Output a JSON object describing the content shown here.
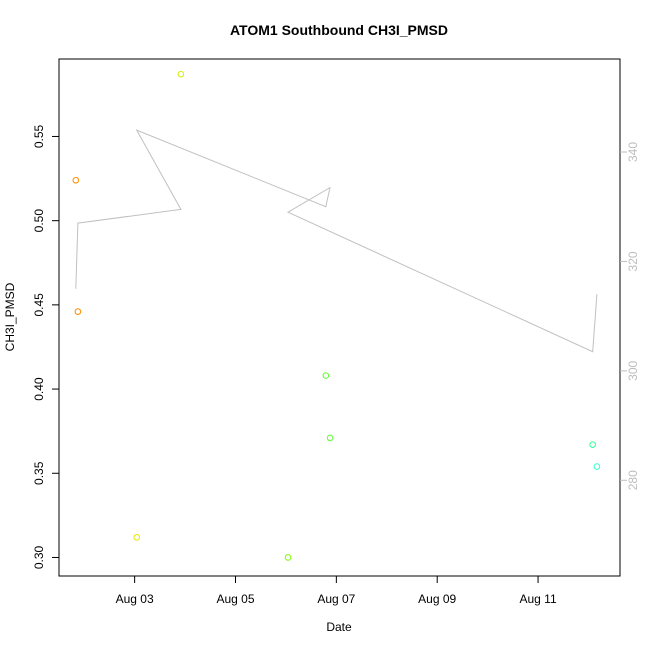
{
  "chart_data": {
    "type": "scatter",
    "title": "ATOM1 Southbound CH3I_PMSD",
    "xlabel": "Date",
    "ylabel": "CH3I_PMSD",
    "x_ticks": [
      {
        "label": "Aug 03",
        "date": "2016-08-03"
      },
      {
        "label": "Aug 05",
        "date": "2016-08-05"
      },
      {
        "label": "Aug 07",
        "date": "2016-08-07"
      },
      {
        "label": "Aug 09",
        "date": "2016-08-09"
      },
      {
        "label": "Aug 11",
        "date": "2016-08-11"
      }
    ],
    "xlim": [
      "2016-08-01T12:00",
      "2016-08-12T15:00"
    ],
    "y_ticks": [
      "0.30",
      "0.35",
      "0.40",
      "0.45",
      "0.50",
      "0.55"
    ],
    "ylim": [
      0.289,
      0.596
    ],
    "y2_ticks": [
      "280",
      "300",
      "320",
      "340"
    ],
    "y2lim": [
      262.5,
      357
    ],
    "grid": false,
    "legend": "none",
    "series": [
      {
        "points": [
          {
            "x": "2016-08-01T20:00",
            "y": 0.524,
            "color": "#ff8c00"
          },
          {
            "x": "2016-08-01T21:00",
            "y": 0.446,
            "color": "#ff8c00"
          },
          {
            "x": "2016-08-03T01:00",
            "y": 0.312,
            "color": "#e6e600"
          },
          {
            "x": "2016-08-03T22:00",
            "y": 0.587,
            "color": "#d4f000"
          },
          {
            "x": "2016-08-06T01:00",
            "y": 0.3,
            "color": "#7cfc00"
          },
          {
            "x": "2016-08-06T19:00",
            "y": 0.408,
            "color": "#5cff2e"
          },
          {
            "x": "2016-08-06T21:00",
            "y": 0.371,
            "color": "#5cff2e"
          },
          {
            "x": "2016-08-12T02:00",
            "y": 0.367,
            "color": "#33ff99"
          },
          {
            "x": "2016-08-12T04:00",
            "y": 0.354,
            "color": "#33ffcc"
          }
        ]
      },
      {
        "axis": "right",
        "color": "#c0c0c0",
        "points": [
          {
            "x": "2016-08-01T20:00",
            "y": 315
          },
          {
            "x": "2016-08-01T21:00",
            "y": 327
          },
          {
            "x": "2016-08-03T22:00",
            "y": 329.5
          },
          {
            "x": "2016-08-03T01:00",
            "y": 344
          },
          {
            "x": "2016-08-06T19:00",
            "y": 330
          },
          {
            "x": "2016-08-06T21:00",
            "y": 333.5
          },
          {
            "x": "2016-08-06T01:00",
            "y": 329
          },
          {
            "x": "2016-08-12T02:00",
            "y": 303.5
          },
          {
            "x": "2016-08-12T04:00",
            "y": 314
          }
        ]
      }
    ]
  }
}
